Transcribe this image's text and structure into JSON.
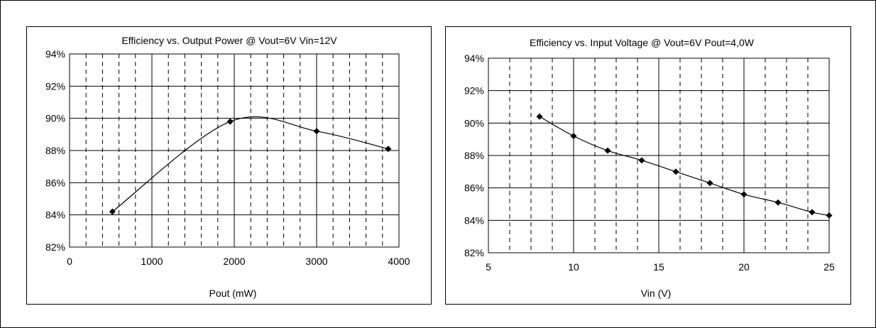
{
  "chart_data": [
    {
      "type": "line",
      "title": "Efficiency vs. Output Power @ Vout=6V Vin=12V",
      "xlabel": "Pout (mW)",
      "ylabel": "",
      "xlim": [
        0,
        4000
      ],
      "ylim": [
        82,
        94
      ],
      "x_ticks": [
        "0",
        "1000",
        "2000",
        "3000",
        "4000"
      ],
      "y_ticks": [
        "82%",
        "84%",
        "86%",
        "88%",
        "90%",
        "92%",
        "94%"
      ],
      "grid": true,
      "minor_x_gridlines_dashed": true,
      "smooth": true,
      "series": [
        {
          "x": [
            520,
            1950,
            3000,
            3870
          ],
          "y": [
            84.2,
            89.8,
            89.2,
            88.1
          ]
        }
      ]
    },
    {
      "type": "line",
      "title": "Efficiency vs. Input Voltage @ Vout=6V Pout=4,0W",
      "xlabel": "Vin (V)",
      "ylabel": "",
      "xlim": [
        5,
        25
      ],
      "ylim": [
        82,
        94
      ],
      "x_ticks": [
        "5",
        "10",
        "15",
        "20",
        "25"
      ],
      "y_ticks": [
        "82%",
        "84%",
        "86%",
        "88%",
        "90%",
        "92%",
        "94%"
      ],
      "grid": true,
      "minor_x_gridlines_dashed": true,
      "smooth": true,
      "series": [
        {
          "x": [
            8,
            10,
            12,
            14,
            16,
            18,
            20,
            22,
            24,
            25
          ],
          "y": [
            90.4,
            89.2,
            88.3,
            87.7,
            87.0,
            86.3,
            85.6,
            85.1,
            84.5,
            84.3
          ]
        }
      ]
    }
  ]
}
